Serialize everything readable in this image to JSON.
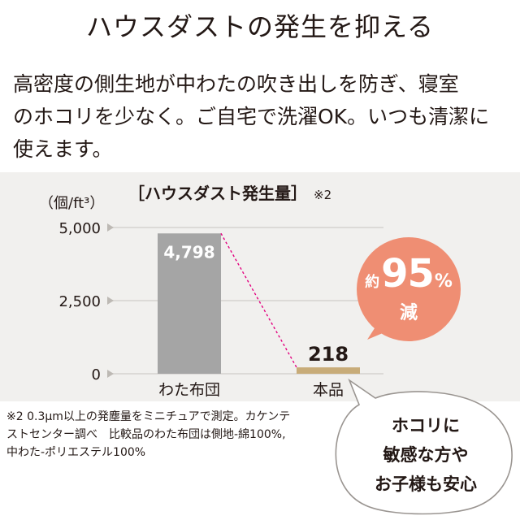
{
  "page": {
    "title": "ハウスダストの発生を抑える",
    "description_lines": [
      "高密度の側生地が中わたの吹き出しを防ぎ、寝室",
      "のホコリを少なく。ご自宅で洗濯OK。いつも清潔に",
      "使えます。"
    ]
  },
  "chart_data": {
    "type": "bar",
    "title": "［ハウスダスト発生量］",
    "title_note": "※2",
    "ylabel": "（個/ft³）",
    "categories": [
      "わた布団",
      "本品"
    ],
    "values": [
      4798,
      218
    ],
    "value_labels": [
      "4,798",
      "218"
    ],
    "yticks": [
      0,
      2500,
      5000
    ],
    "ytick_labels": [
      "0",
      "2,500",
      "5,000"
    ],
    "ylim": [
      0,
      5000
    ],
    "grid": true,
    "colors": {
      "bar_futon": "#a5a5a5",
      "bar_product": "#c8ac79",
      "connector": "#e3007f",
      "gridline": "#d6d3cf",
      "panel": "#f1f0ee"
    }
  },
  "badge": {
    "prefix": "約",
    "number": "95",
    "unit": "%",
    "suffix": "減",
    "color": "#ef8e73"
  },
  "footnote_lines": [
    "※2 0.3μm以上の発塵量をミニチュアで測定。カケンテ",
    "ストセンター調べ　比較品のわた布団は側地-綿100%,",
    "中わた-ポリエステル100%"
  ],
  "bubble": {
    "lines": [
      "ホコリに",
      "敏感な方や",
      "お子様も安心"
    ]
  }
}
